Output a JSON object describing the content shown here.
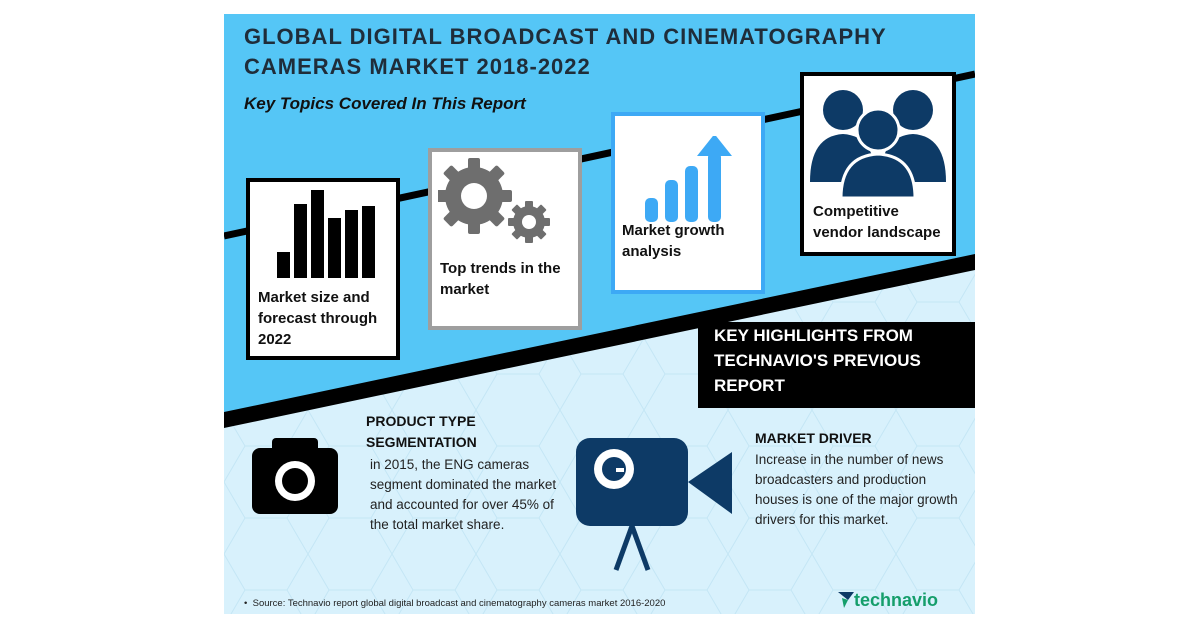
{
  "title": "GLOBAL DIGITAL BROADCAST AND CINEMATOGRAPHY\nCAMERAS MARKET 2018-2022",
  "subtitle": "Key Topics Covered In This Report",
  "topics": [
    {
      "label": "Market size and\nforecast through\n2022",
      "icon": "bar-chart-icon"
    },
    {
      "label": "Top trends in the\nmarket",
      "icon": "gears-icon"
    },
    {
      "label": "Market growth\nanalysis",
      "icon": "growth-chart-icon"
    },
    {
      "label": "Competitive\nvendor landscape",
      "icon": "people-icon"
    }
  ],
  "highlights_header": "KEY HIGHLIGHTS FROM\nTECHNAVIO'S PREVIOUS\nREPORT",
  "product_type": {
    "heading": "PRODUCT TYPE\nSEGMENTATION",
    "text": "in 2015, the ENG cameras segment dominated the market and accounted for over 45% of the total market share.",
    "icon": "camera-icon"
  },
  "market_driver": {
    "heading": "MARKET DRIVER",
    "text": "Increase in the number of news broadcasters and production houses is one of the major growth drivers for this market.",
    "icon": "video-camera-icon"
  },
  "source": "Source: Technavio report global digital broadcast and cinematography cameras market 2016-2020",
  "logo": "technavio",
  "colors": {
    "sky": "#55c6f6",
    "light_bg": "#d8f1fc",
    "navy": "#0d3a66",
    "card_gray": "#9e9e9e",
    "card_blue": "#3da9f5",
    "logo_green": "#159e6b"
  }
}
